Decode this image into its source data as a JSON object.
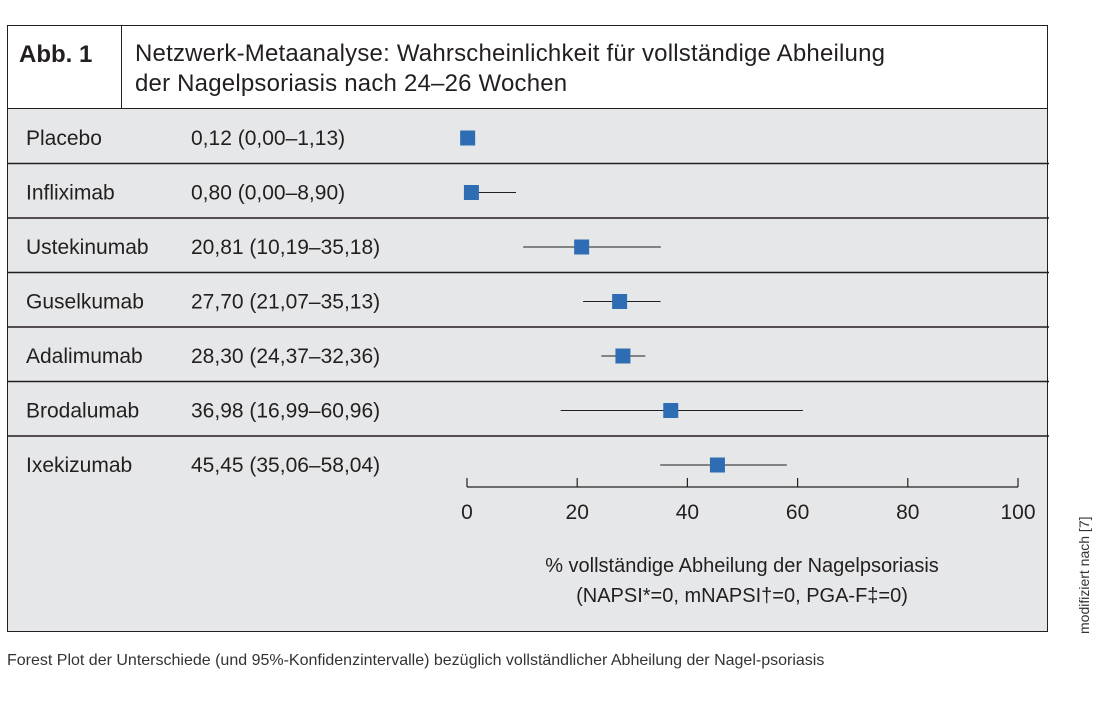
{
  "figure": {
    "label": "Abb. 1",
    "title_line1": "Netzwerk-Metaanalyse: Wahrscheinlichkeit für vollständige Abheilung",
    "title_line2": "der Nagelpsoriasis nach 24–26 Wochen"
  },
  "chart_data": {
    "type": "forest",
    "rows": [
      {
        "name": "Placebo",
        "label": "0,12 (0,00–1,13)",
        "value": 0.12,
        "low": 0.0,
        "high": 1.13
      },
      {
        "name": "Infliximab",
        "label": "0,80 (0,00–8,90)",
        "value": 0.8,
        "low": 0.0,
        "high": 8.9
      },
      {
        "name": "Ustekinumab",
        "label": "20,81 (10,19–35,18)",
        "value": 20.81,
        "low": 10.19,
        "high": 35.18
      },
      {
        "name": "Guselkumab",
        "label": "27,70 (21,07–35,13)",
        "value": 27.7,
        "low": 21.07,
        "high": 35.13
      },
      {
        "name": "Adalimumab",
        "label": "28,30 (24,37–32,36)",
        "value": 28.3,
        "low": 24.37,
        "high": 32.36
      },
      {
        "name": "Brodalumab",
        "label": "36,98 (16,99–60,96)",
        "value": 36.98,
        "low": 16.99,
        "high": 60.96
      },
      {
        "name": "Ixekizumab",
        "label": "45,45 (35,06–58,04)",
        "value": 45.45,
        "low": 35.06,
        "high": 58.04
      }
    ],
    "xlim": [
      0,
      100
    ],
    "xticks": [
      0,
      20,
      40,
      60,
      80,
      100
    ],
    "xlabel_line1": "% vollständige Abheilung der Nagelpsoriasis",
    "xlabel_line2": "(NAPSI*=0, mNAPSI†=0, PGA-F‡=0)",
    "marker_color": "#2e6db4",
    "line_color": "#231f20"
  },
  "side_note": "modifiziert nach [7]",
  "caption": "Forest Plot der Unterschiede (und 95%-Konfidenzintervalle) bezüglich vollständlicher Abheilung der Nagel-psoriasis"
}
